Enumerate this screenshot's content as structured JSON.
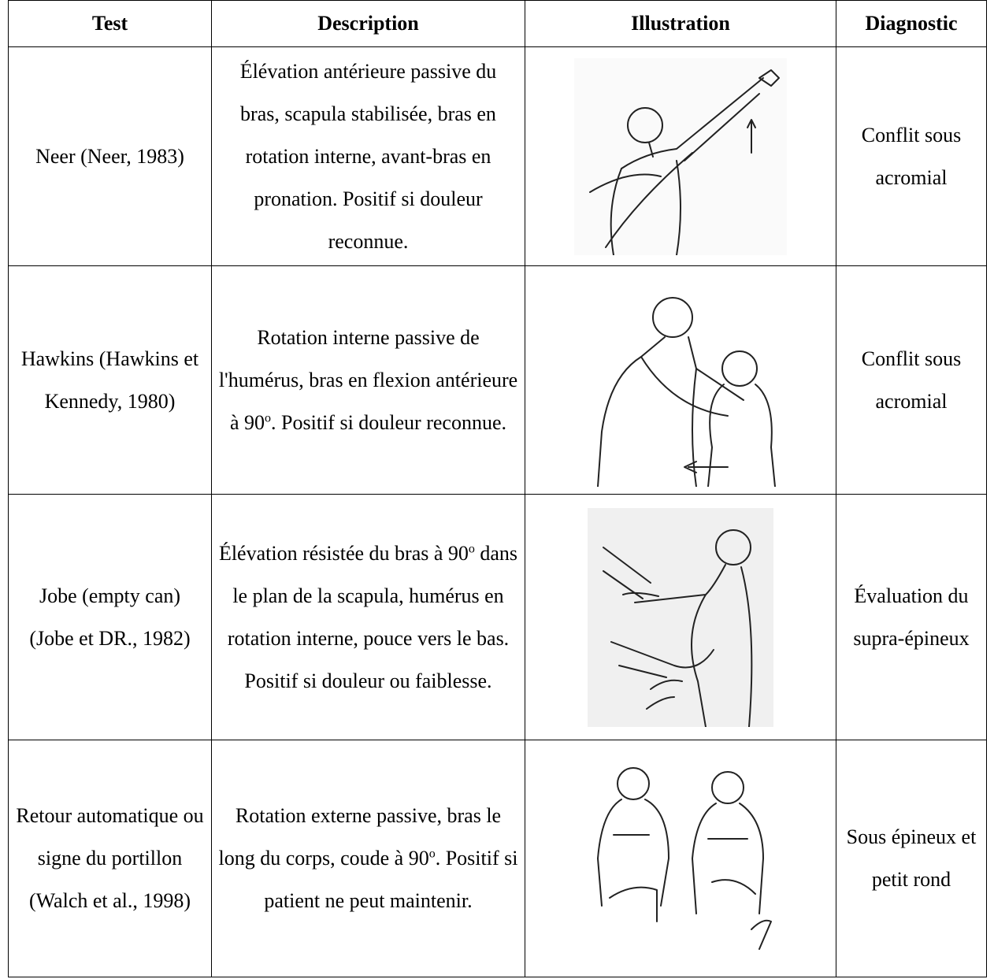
{
  "table": {
    "header": [
      "Test",
      "Description",
      "Illustration",
      "Diagnostic"
    ],
    "rows": [
      {
        "test": "Neer (Neer, 1983)",
        "description": [
          "Élévation antérieure passive du bras, scapula stabilisée, bras en rotation interne, avant-bras en pronation. Positif si douleur reconnue."
        ],
        "diagnostic": "Conflit sous acromial"
      },
      {
        "test": "Hawkins (Hawkins et Kennedy, 1980)",
        "description": [
          "Rotation interne passive de l'humérus, bras en flexion antérieure à 90",
          "o",
          ". Positif si douleur reconnue."
        ],
        "diagnostic": "Conflit sous acromial"
      },
      {
        "test": "Jobe (empty can) (Jobe et DR., 1982)",
        "description": [
          "Élévation résistée du bras à 90",
          "o",
          " dans le plan de la scapula, humérus en rotation interne, pouce vers le bas. Positif si douleur ou faiblesse."
        ],
        "diagnostic": "Évaluation du supra-épineux"
      },
      {
        "test": "Retour automatique ou signe du portillon (Walch et al., 1998)",
        "description": [
          "Rotation externe passive, bras le long du corps, coude à 90",
          "o",
          ". Positif si patient ne peut maintenir."
        ],
        "diagnostic": "Sous épineux et petit rond"
      }
    ]
  }
}
